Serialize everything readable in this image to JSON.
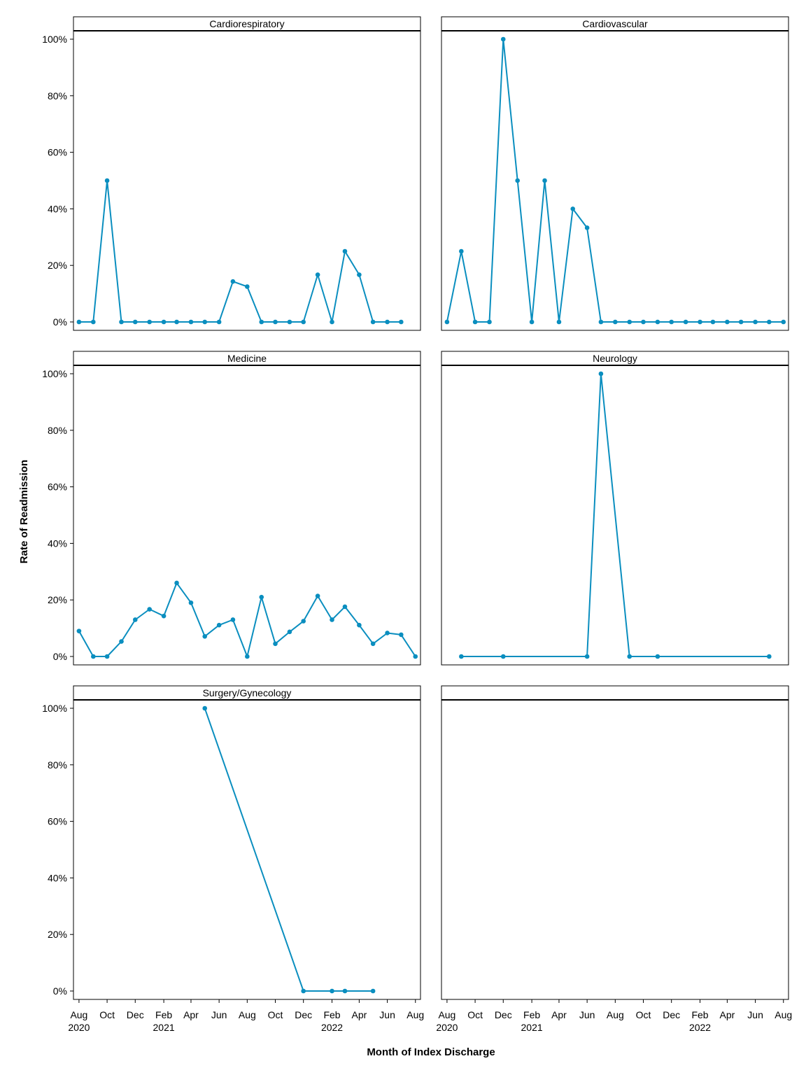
{
  "chart_data": {
    "type": "line",
    "layout": "facet-grid-2x3",
    "xlabel": "Month of Index Discharge",
    "ylabel": "Rate of Readmission",
    "ylim": [
      0,
      1
    ],
    "y_ticks": [
      0,
      0.2,
      0.4,
      0.6,
      0.8,
      1.0
    ],
    "y_tick_labels": [
      "0%",
      "20%",
      "40%",
      "60%",
      "80%",
      "100%"
    ],
    "x_range": [
      "2020-07-20",
      "2022-08-12"
    ],
    "x_ticks": [
      {
        "date": "2020-08-01",
        "label": "Aug",
        "year": "2020"
      },
      {
        "date": "2020-10-01",
        "label": "Oct",
        "year": ""
      },
      {
        "date": "2020-12-01",
        "label": "Dec",
        "year": ""
      },
      {
        "date": "2021-02-01",
        "label": "Feb",
        "year": "2021"
      },
      {
        "date": "2021-04-01",
        "label": "Apr",
        "year": ""
      },
      {
        "date": "2021-06-01",
        "label": "Jun",
        "year": ""
      },
      {
        "date": "2021-08-01",
        "label": "Aug",
        "year": ""
      },
      {
        "date": "2021-10-01",
        "label": "Oct",
        "year": ""
      },
      {
        "date": "2021-12-01",
        "label": "Dec",
        "year": ""
      },
      {
        "date": "2022-02-01",
        "label": "Feb",
        "year": "2022"
      },
      {
        "date": "2022-04-01",
        "label": "Apr",
        "year": ""
      },
      {
        "date": "2022-06-01",
        "label": "Jun",
        "year": ""
      },
      {
        "date": "2022-08-01",
        "label": "Aug",
        "year": ""
      }
    ],
    "colors": {
      "series": "#0a8ebf",
      "frame": "#000000"
    },
    "panels": [
      {
        "title": "Cardiorespiratory",
        "x": [
          "2020-08-01",
          "2020-09-01",
          "2020-10-01",
          "2020-11-01",
          "2020-12-01",
          "2021-01-01",
          "2021-02-01",
          "2021-03-01",
          "2021-04-01",
          "2021-05-01",
          "2021-06-01",
          "2021-07-01",
          "2021-08-01",
          "2021-09-01",
          "2021-10-01",
          "2021-11-01",
          "2021-12-01",
          "2022-01-01",
          "2022-02-01",
          "2022-03-01",
          "2022-04-01",
          "2022-05-01",
          "2022-06-01",
          "2022-07-01"
        ],
        "values": [
          0,
          0,
          0.5,
          0,
          0,
          0,
          0,
          0,
          0,
          0,
          0,
          0.143,
          0.125,
          0,
          0,
          0,
          0,
          0.167,
          0,
          0.25,
          0.167,
          0,
          0,
          0
        ]
      },
      {
        "title": "Cardiovascular",
        "x": [
          "2020-08-01",
          "2020-09-01",
          "2020-10-01",
          "2020-11-01",
          "2020-12-01",
          "2021-01-01",
          "2021-02-01",
          "2021-03-01",
          "2021-04-01",
          "2021-05-01",
          "2021-06-01",
          "2021-07-01",
          "2021-08-01",
          "2021-09-01",
          "2021-10-01",
          "2021-11-01",
          "2021-12-01",
          "2022-01-01",
          "2022-02-01",
          "2022-03-01",
          "2022-04-01",
          "2022-05-01",
          "2022-06-01",
          "2022-07-01",
          "2022-08-01"
        ],
        "values": [
          0,
          0.25,
          0,
          0,
          1.0,
          0.5,
          0,
          0.5,
          0,
          0.4,
          0.333,
          0,
          0,
          0,
          0,
          0,
          0,
          0,
          0,
          0,
          0,
          0,
          0,
          0,
          0
        ]
      },
      {
        "title": "Medicine",
        "x": [
          "2020-08-01",
          "2020-09-01",
          "2020-10-01",
          "2020-11-01",
          "2020-12-01",
          "2021-01-01",
          "2021-02-01",
          "2021-03-01",
          "2021-04-01",
          "2021-05-01",
          "2021-06-01",
          "2021-07-01",
          "2021-08-01",
          "2021-09-01",
          "2021-10-01",
          "2021-11-01",
          "2021-12-01",
          "2022-01-01",
          "2022-02-01",
          "2022-03-01",
          "2022-04-01",
          "2022-05-01",
          "2022-06-01",
          "2022-07-01",
          "2022-08-01"
        ],
        "values": [
          0.09,
          0,
          0,
          0.053,
          0.13,
          0.167,
          0.143,
          0.26,
          0.19,
          0.071,
          0.111,
          0.13,
          0,
          0.21,
          0.045,
          0.087,
          0.125,
          0.214,
          0.13,
          0.176,
          0.111,
          0.045,
          0.083,
          0.077,
          0
        ]
      },
      {
        "title": "Neurology",
        "x": [
          "2020-09-01",
          "2020-12-01",
          "2021-06-01",
          "2021-07-01",
          "2021-09-01",
          "2021-11-01",
          "2022-07-01"
        ],
        "values": [
          0,
          0,
          0,
          1.0,
          0,
          0,
          0
        ]
      },
      {
        "title": "Surgery/Gynecology",
        "x": [
          "2021-05-01",
          "2021-12-01",
          "2022-02-01",
          "2022-03-01",
          "2022-05-01"
        ],
        "values": [
          1.0,
          0,
          0,
          0,
          0
        ]
      },
      {
        "title": "",
        "x": [],
        "values": []
      }
    ]
  }
}
